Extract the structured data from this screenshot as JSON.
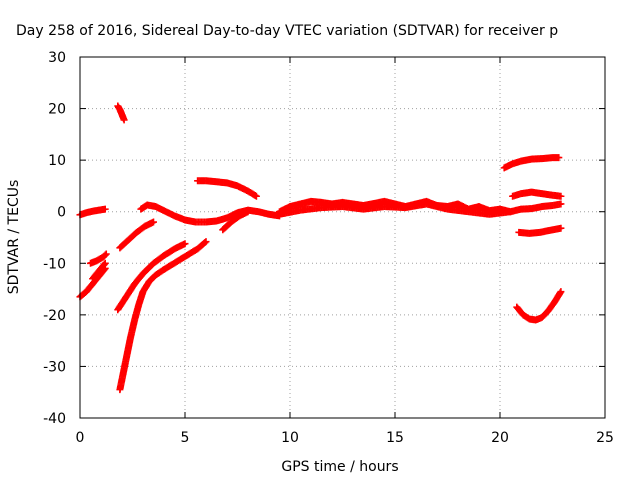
{
  "chart_data": {
    "type": "scatter",
    "title": "Day 258 of 2016, Sidereal Day-to-day VTEC variation (SDTVAR) for receiver p",
    "xlabel": "GPS time / hours",
    "ylabel": "SDTVAR / TECUs",
    "xlim": [
      0,
      25
    ],
    "ylim": [
      -40,
      30
    ],
    "xticks": [
      "0",
      "5",
      "10",
      "15",
      "20",
      "25"
    ],
    "yticks": [
      "30",
      "20",
      "10",
      "0",
      "-10",
      "-20",
      "-30",
      "-40"
    ],
    "grid": true,
    "marker": "+",
    "color": "#ff0000",
    "series": [
      {
        "x": [
          0.0,
          0.3,
          0.6,
          0.9,
          1.2
        ],
        "y": [
          -0.6,
          -0.2,
          0.1,
          0.3,
          0.5
        ]
      },
      {
        "x": [
          0.0,
          0.3,
          0.6,
          0.9,
          1.2
        ],
        "y": [
          -16.5,
          -15.5,
          -14.0,
          -12.5,
          -11.0
        ]
      },
      {
        "x": [
          0.5,
          0.8,
          1.1,
          1.25
        ],
        "y": [
          -10.0,
          -9.5,
          -8.8,
          -8.2
        ]
      },
      {
        "x": [
          0.6,
          0.9,
          1.2
        ],
        "y": [
          -13.0,
          -11.5,
          -10.0
        ]
      },
      {
        "x": [
          1.8,
          1.9,
          2.0,
          2.1
        ],
        "y": [
          20.5,
          19.8,
          18.8,
          17.8
        ]
      },
      {
        "x": [
          1.9,
          2.3,
          2.7,
          3.1,
          3.5
        ],
        "y": [
          -7.0,
          -5.5,
          -4.0,
          -2.8,
          -2.0
        ]
      },
      {
        "x": [
          1.8,
          2.2,
          2.6,
          3.0,
          3.5,
          4.0,
          4.5,
          5.0
        ],
        "y": [
          -19.0,
          -16.5,
          -14.0,
          -12.0,
          -10.0,
          -8.5,
          -7.2,
          -6.2
        ]
      },
      {
        "x": [
          1.9,
          2.05,
          2.2,
          2.4,
          2.6,
          2.8,
          3.0,
          3.3,
          3.6,
          4.0,
          4.4,
          4.8,
          5.2,
          5.6,
          6.0
        ],
        "y": [
          -34.5,
          -31.5,
          -28.5,
          -24.5,
          -21.0,
          -18.0,
          -15.5,
          -13.5,
          -12.3,
          -11.2,
          -10.2,
          -9.2,
          -8.2,
          -7.2,
          -5.8
        ]
      },
      {
        "x": [
          2.9,
          3.2,
          3.6,
          4.0,
          4.5,
          5.0,
          5.5,
          6.0,
          6.5,
          7.0,
          7.5,
          8.0,
          8.5,
          9.0,
          9.5
        ],
        "y": [
          0.5,
          1.3,
          1.0,
          0.2,
          -0.8,
          -1.6,
          -2.0,
          -2.0,
          -1.8,
          -1.2,
          -0.2,
          0.3,
          0.0,
          -0.5,
          -0.8
        ]
      },
      {
        "x": [
          5.6,
          6.0,
          6.5,
          7.0,
          7.5,
          8.0,
          8.4
        ],
        "y": [
          6.0,
          6.0,
          5.8,
          5.6,
          5.0,
          4.0,
          3.0
        ]
      },
      {
        "x": [
          6.8,
          7.2,
          7.6,
          8.0
        ],
        "y": [
          -3.5,
          -2.0,
          -0.8,
          0.0
        ]
      },
      {
        "x": [
          9.5,
          10.0,
          10.5,
          11.0,
          11.5,
          12.0,
          12.5,
          13.0,
          13.5,
          14.0,
          14.5,
          15.0,
          15.5,
          16.0,
          16.5,
          17.0,
          17.5,
          18.0,
          18.5,
          19.0,
          19.5,
          20.0,
          20.5,
          21.0,
          21.5,
          22.0,
          22.5,
          22.9
        ],
        "y": [
          0.0,
          1.0,
          1.5,
          2.0,
          1.8,
          1.5,
          1.8,
          1.5,
          1.2,
          1.6,
          2.0,
          1.5,
          1.0,
          1.5,
          2.0,
          1.2,
          1.0,
          1.5,
          0.5,
          1.0,
          0.2,
          0.5,
          0.0,
          0.5,
          0.6,
          1.0,
          1.2,
          1.5
        ]
      },
      {
        "x": [
          9.5,
          10.5,
          11.5,
          12.5,
          13.5,
          14.5,
          15.5,
          16.5,
          17.5,
          18.5,
          19.5,
          20.5
        ],
        "y": [
          -0.5,
          0.3,
          0.8,
          1.0,
          0.5,
          1.0,
          0.8,
          1.5,
          0.5,
          0.0,
          -0.5,
          0.0
        ]
      },
      {
        "x": [
          20.2,
          20.6,
          21.0,
          21.5,
          22.0,
          22.5,
          22.8
        ],
        "y": [
          8.5,
          9.3,
          9.8,
          10.2,
          10.3,
          10.5,
          10.5
        ]
      },
      {
        "x": [
          20.6,
          21.0,
          21.5,
          22.0,
          22.5,
          22.9
        ],
        "y": [
          3.0,
          3.5,
          3.8,
          3.5,
          3.2,
          3.0
        ]
      },
      {
        "x": [
          20.9,
          21.4,
          21.9,
          22.4,
          22.9
        ],
        "y": [
          -4.0,
          -4.2,
          -4.0,
          -3.6,
          -3.2
        ]
      },
      {
        "x": [
          20.8,
          21.1,
          21.4,
          21.7,
          22.0,
          22.3,
          22.6,
          22.9
        ],
        "y": [
          -18.5,
          -20.0,
          -20.8,
          -21.0,
          -20.5,
          -19.2,
          -17.5,
          -15.5
        ]
      }
    ]
  }
}
